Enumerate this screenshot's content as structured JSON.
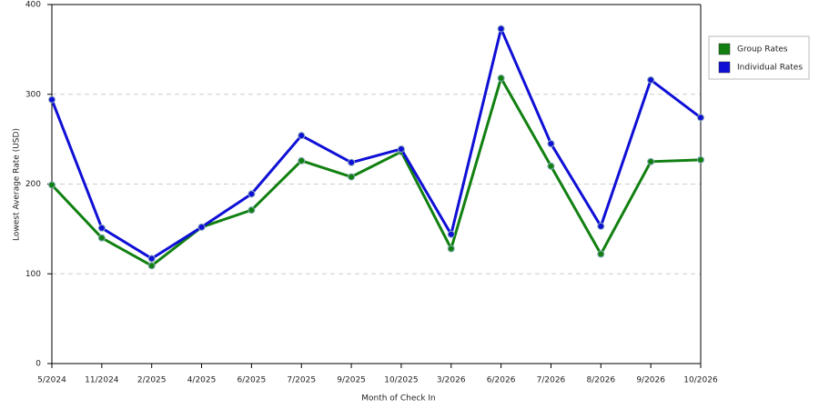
{
  "chart_data": {
    "type": "line",
    "x_label": "Month of Check In",
    "y_label": "Lowest Average Rate (USD)",
    "categories": [
      "5/2024",
      "11/2024",
      "2/2025",
      "4/2025",
      "6/2025",
      "7/2025",
      "9/2025",
      "10/2025",
      "3/2026",
      "6/2026",
      "7/2026",
      "8/2026",
      "9/2026",
      "10/2026"
    ],
    "series": [
      {
        "name": "Group Rates",
        "color": "#118011",
        "values": [
          199,
          140,
          109,
          152,
          171,
          226,
          208,
          236,
          128,
          318,
          220,
          122,
          225,
          227
        ]
      },
      {
        "name": "Individual Rates",
        "color": "#0f0fd6",
        "values": [
          294,
          151,
          117,
          152,
          189,
          254,
          224,
          239,
          144,
          373,
          245,
          153,
          316,
          274
        ]
      }
    ],
    "ylim": [
      0,
      400
    ],
    "yticks": [
      0,
      100,
      200,
      300,
      400
    ],
    "grid": true,
    "legend": "right"
  }
}
